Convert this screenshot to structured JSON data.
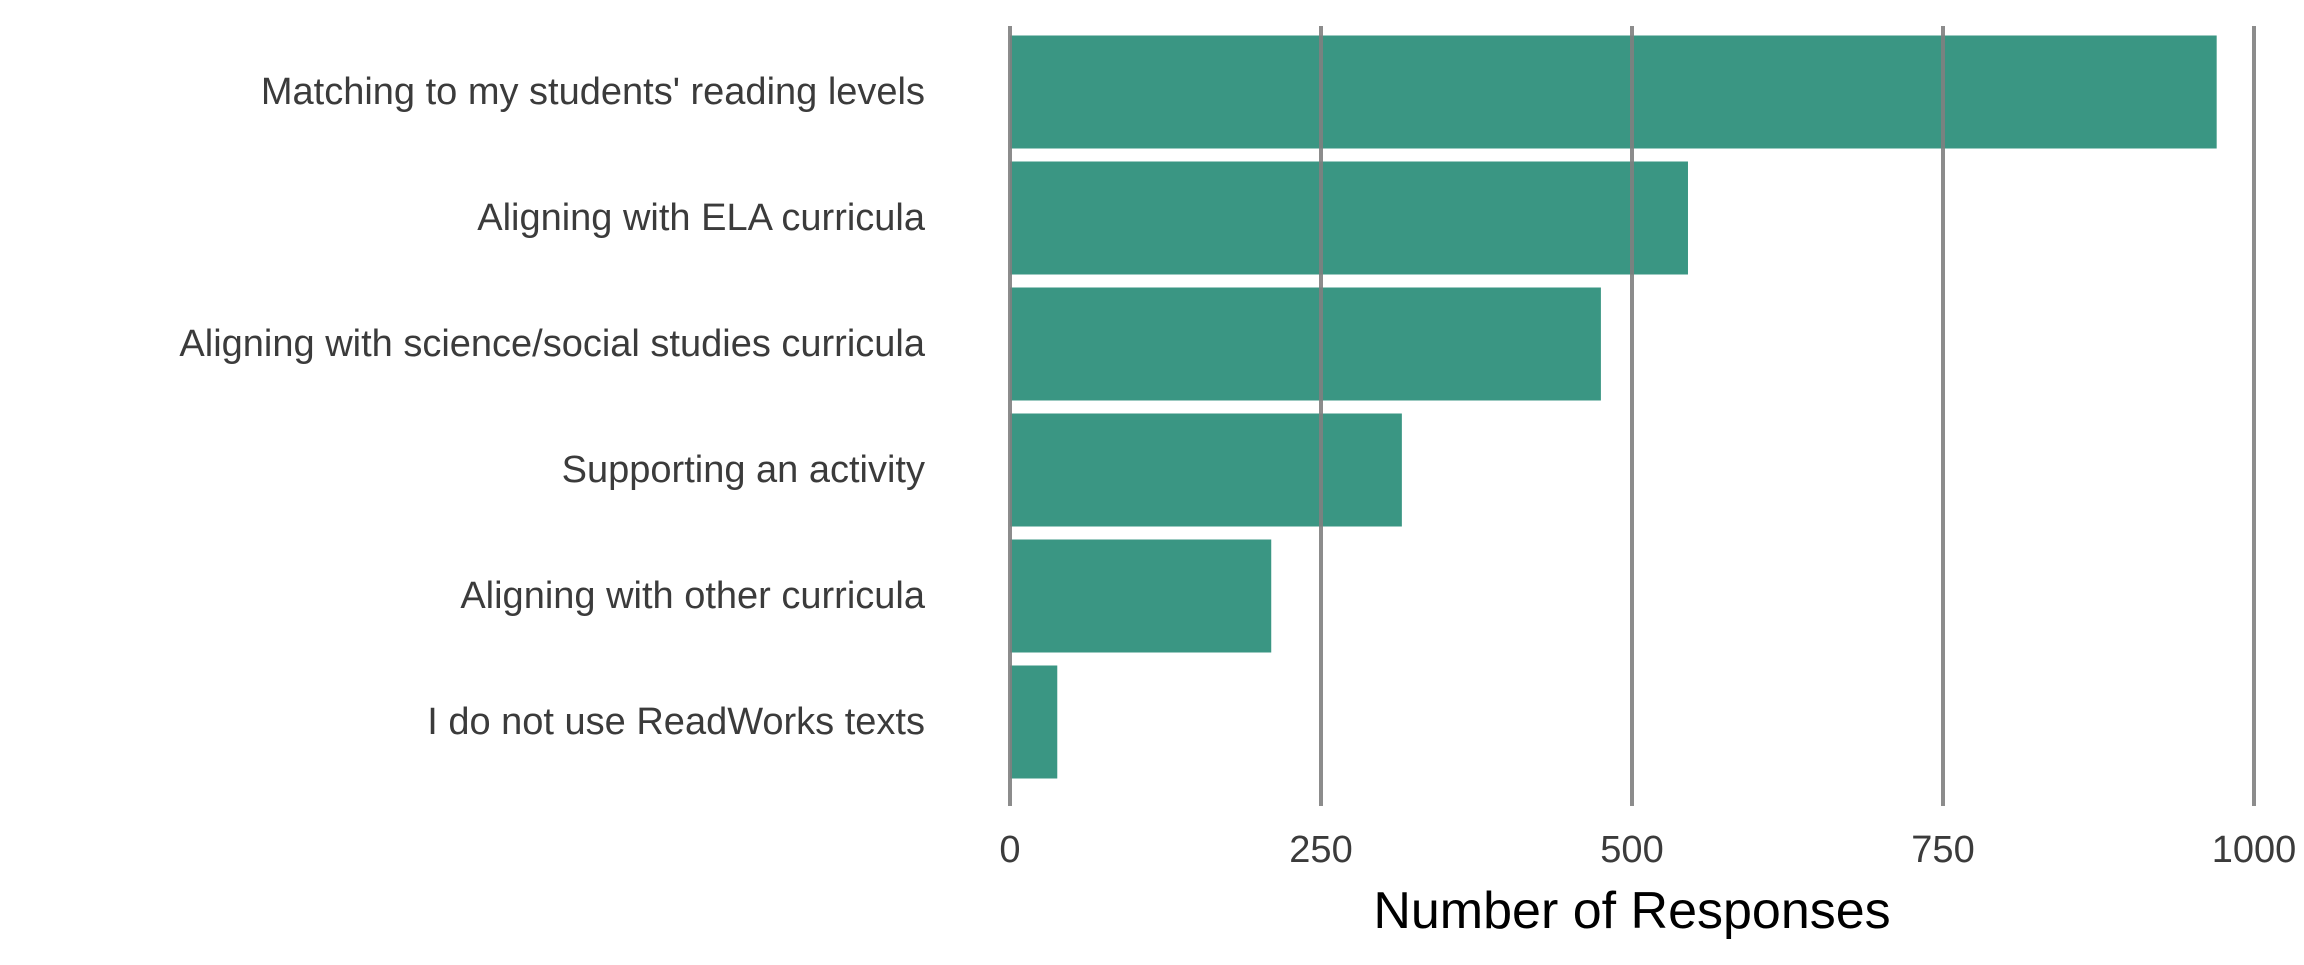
{
  "chart_data": {
    "type": "bar",
    "orientation": "horizontal",
    "categories": [
      "Matching to my students' reading levels",
      "Aligning with ELA curricula",
      "Aligning with science/social studies curricula",
      "Supporting an activity",
      "Aligning with other curricula",
      "I do not use ReadWorks texts"
    ],
    "values": [
      970,
      545,
      475,
      315,
      210,
      38
    ],
    "xlabel": "Number of Responses",
    "ylabel": "",
    "title": "",
    "xlim": [
      0,
      1000
    ],
    "xticks": [
      0,
      250,
      500,
      750,
      1000
    ],
    "xtick_labels": [
      "0",
      "250",
      "500",
      "750",
      "1000"
    ],
    "grid": "vertical",
    "legend": "none",
    "colors": {
      "bar": "#3a9683",
      "gridline": "#808080",
      "text": "#3b3b3b",
      "axis_title": "#000000"
    }
  }
}
